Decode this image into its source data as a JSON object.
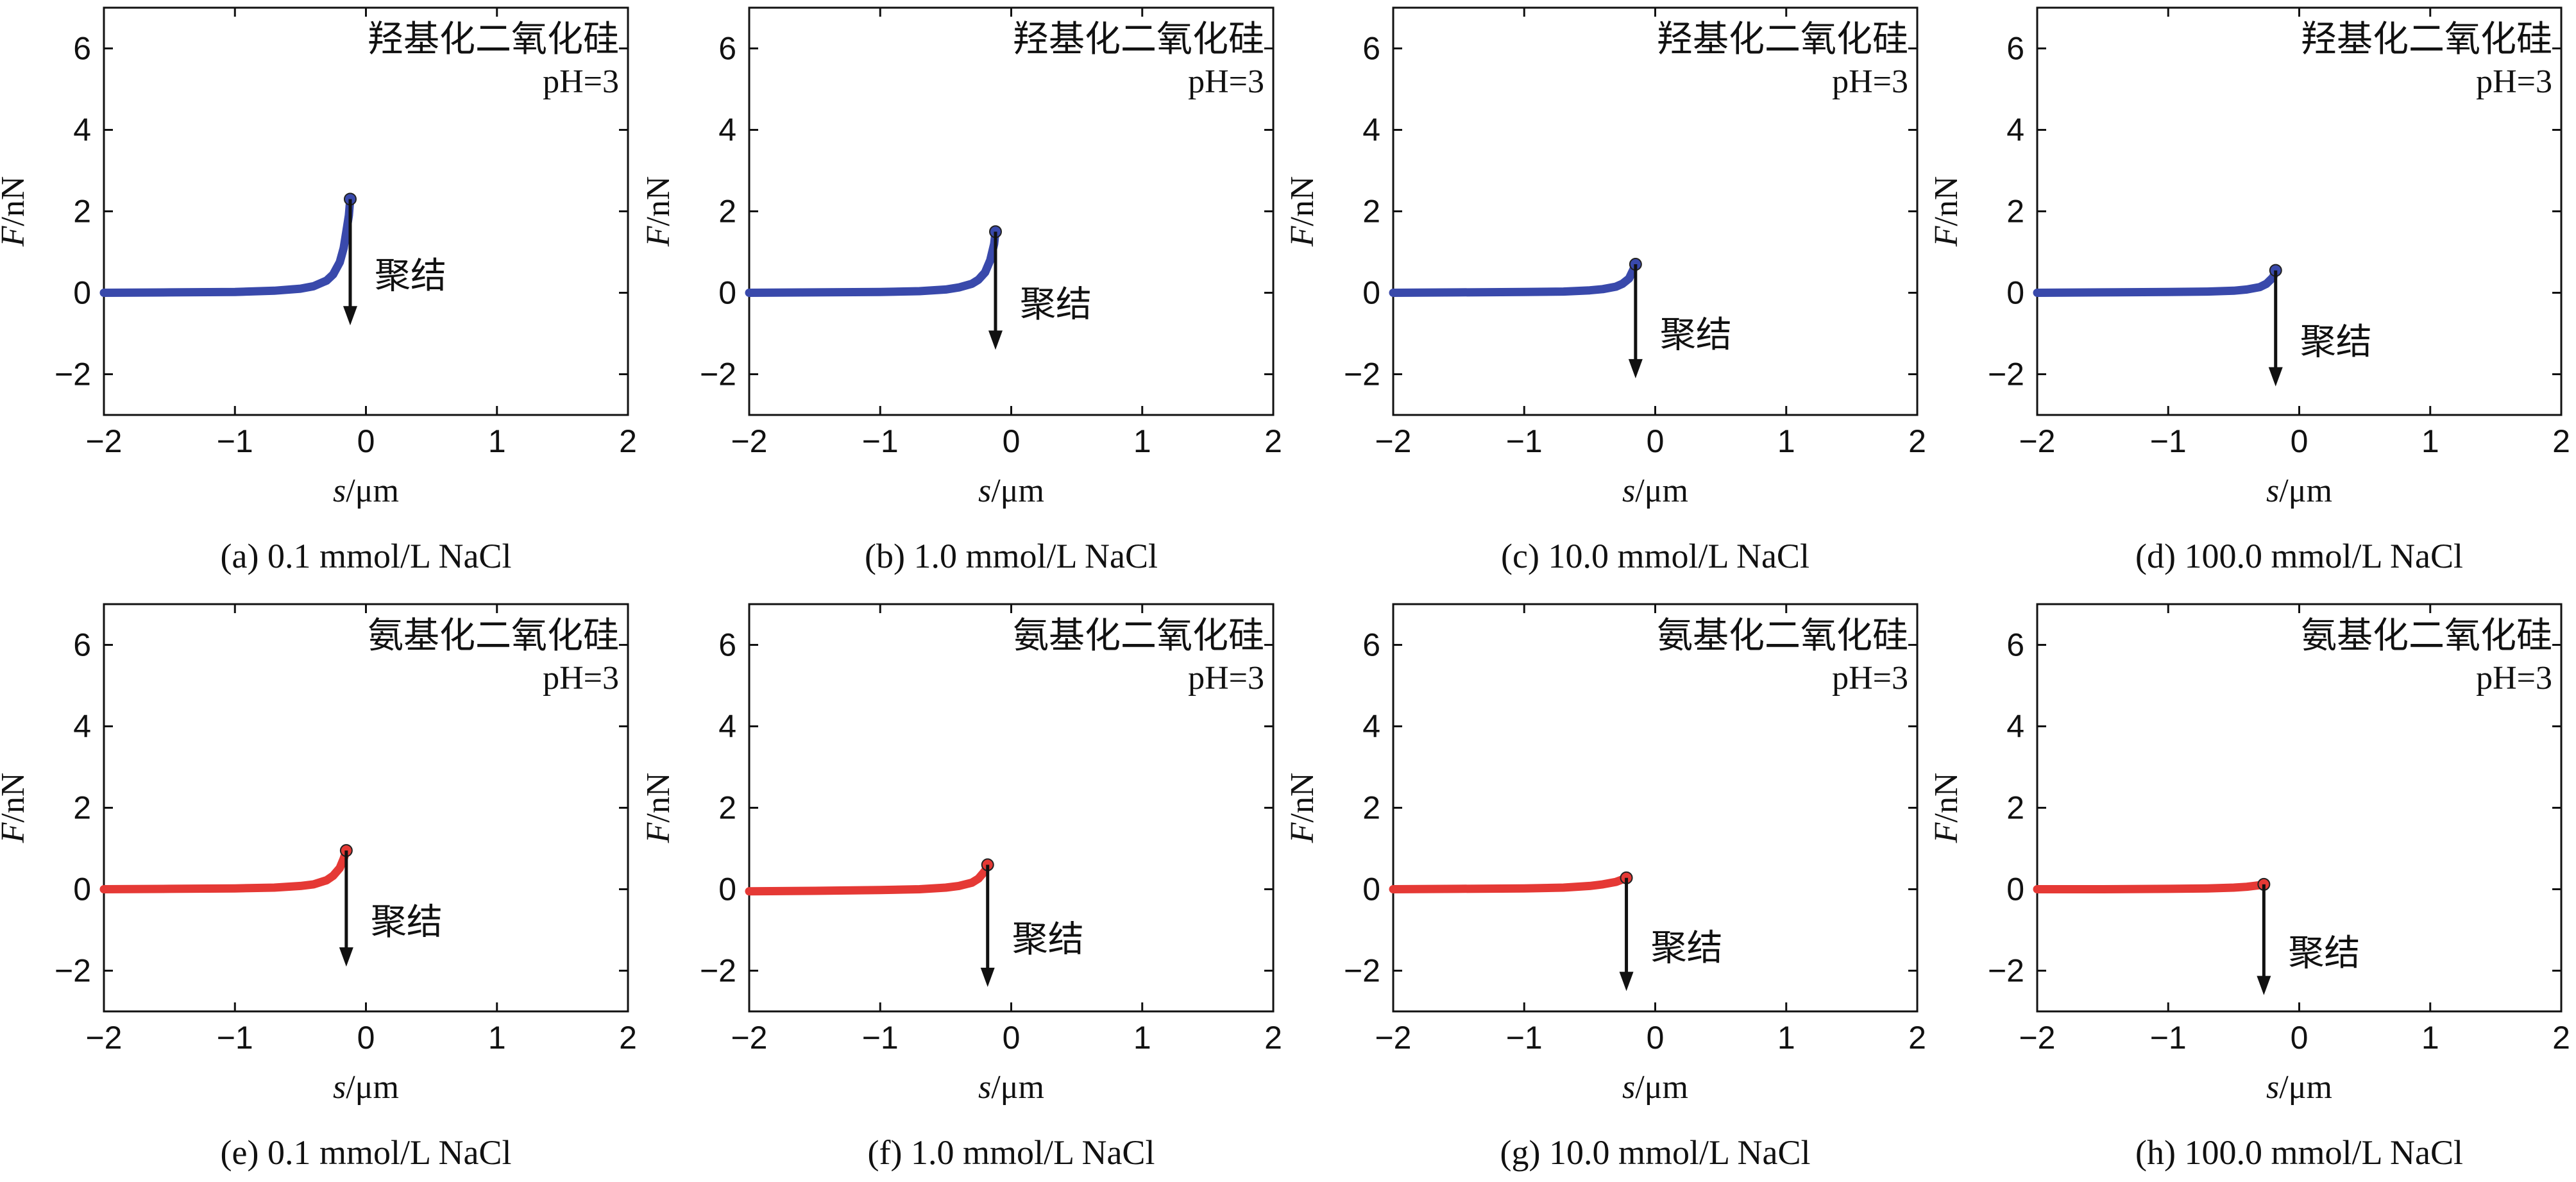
{
  "figure": {
    "description_units": {
      "x": "s/μm",
      "y": "F/nN"
    }
  },
  "chart_data": [
    {
      "id": "a",
      "type": "line",
      "caption": "(a) 0.1 mmol/L NaCl",
      "annotation": "羟基化二氧化硅",
      "ph": "pH=3",
      "arrow_label": "聚结",
      "xlabel_var": "s",
      "xlabel_unit": "/μm",
      "ylabel_var": "F",
      "ylabel_unit": "/nN",
      "xlim": [
        -2,
        2
      ],
      "ylim": [
        -3,
        7
      ],
      "xticks": [
        -2,
        -1,
        0,
        1,
        2
      ],
      "yticks": [
        -2,
        0,
        2,
        4,
        6
      ],
      "series": [
        {
          "name": "force curve",
          "color": "#3949ab",
          "x": [
            -2.0,
            -1.5,
            -1.0,
            -0.7,
            -0.5,
            -0.4,
            -0.3,
            -0.25,
            -0.2,
            -0.17,
            -0.15,
            -0.13,
            -0.12
          ],
          "y": [
            0.0,
            0.01,
            0.02,
            0.05,
            0.1,
            0.16,
            0.3,
            0.45,
            0.75,
            1.1,
            1.5,
            1.9,
            2.3
          ]
        }
      ],
      "jump": {
        "x": -0.12,
        "y_from": 2.3,
        "y_to": -0.8
      }
    },
    {
      "id": "b",
      "type": "line",
      "caption": "(b) 1.0 mmol/L NaCl",
      "annotation": "羟基化二氧化硅",
      "ph": "pH=3",
      "arrow_label": "聚结",
      "xlabel_var": "s",
      "xlabel_unit": "/μm",
      "ylabel_var": "F",
      "ylabel_unit": "/nN",
      "xlim": [
        -2,
        2
      ],
      "ylim": [
        -3,
        7
      ],
      "xticks": [
        -2,
        -1,
        0,
        1,
        2
      ],
      "yticks": [
        -2,
        0,
        2,
        4,
        6
      ],
      "series": [
        {
          "name": "force curve",
          "color": "#3949ab",
          "x": [
            -2.0,
            -1.5,
            -1.0,
            -0.7,
            -0.5,
            -0.4,
            -0.3,
            -0.25,
            -0.2,
            -0.16,
            -0.13,
            -0.12
          ],
          "y": [
            0.0,
            0.01,
            0.02,
            0.04,
            0.08,
            0.13,
            0.22,
            0.32,
            0.5,
            0.8,
            1.2,
            1.5
          ]
        }
      ],
      "jump": {
        "x": -0.12,
        "y_from": 1.5,
        "y_to": -1.4
      }
    },
    {
      "id": "c",
      "type": "line",
      "caption": "(c) 10.0 mmol/L NaCl",
      "annotation": "羟基化二氧化硅",
      "ph": "pH=3",
      "arrow_label": "聚结",
      "xlabel_var": "s",
      "xlabel_unit": "/μm",
      "ylabel_var": "F",
      "ylabel_unit": "/nN",
      "xlim": [
        -2,
        2
      ],
      "ylim": [
        -3,
        7
      ],
      "xticks": [
        -2,
        -1,
        0,
        1,
        2
      ],
      "yticks": [
        -2,
        0,
        2,
        4,
        6
      ],
      "series": [
        {
          "name": "force curve",
          "color": "#3949ab",
          "x": [
            -2.0,
            -1.5,
            -1.0,
            -0.7,
            -0.5,
            -0.4,
            -0.3,
            -0.25,
            -0.2,
            -0.17,
            -0.15
          ],
          "y": [
            0.0,
            0.01,
            0.02,
            0.03,
            0.06,
            0.09,
            0.15,
            0.22,
            0.35,
            0.55,
            0.7
          ]
        }
      ],
      "jump": {
        "x": -0.15,
        "y_from": 0.7,
        "y_to": -2.1
      }
    },
    {
      "id": "d",
      "type": "line",
      "caption": "(d) 100.0 mmol/L NaCl",
      "annotation": "羟基化二氧化硅",
      "ph": "pH=3",
      "arrow_label": "聚结",
      "xlabel_var": "s",
      "xlabel_unit": "/μm",
      "ylabel_var": "F",
      "ylabel_unit": "/nN",
      "xlim": [
        -2,
        2
      ],
      "ylim": [
        -3,
        7
      ],
      "xticks": [
        -2,
        -1,
        0,
        1,
        2
      ],
      "yticks": [
        -2,
        0,
        2,
        4,
        6
      ],
      "series": [
        {
          "name": "force curve",
          "color": "#3949ab",
          "x": [
            -2.0,
            -1.5,
            -1.0,
            -0.7,
            -0.5,
            -0.4,
            -0.3,
            -0.25,
            -0.2,
            -0.18
          ],
          "y": [
            0.0,
            0.01,
            0.02,
            0.03,
            0.05,
            0.08,
            0.14,
            0.22,
            0.38,
            0.55
          ]
        }
      ],
      "jump": {
        "x": -0.18,
        "y_from": 0.55,
        "y_to": -2.3
      }
    },
    {
      "id": "e",
      "type": "line",
      "caption": "(e) 0.1 mmol/L NaCl",
      "annotation": "氨基化二氧化硅",
      "ph": "pH=3",
      "arrow_label": "聚结",
      "xlabel_var": "s",
      "xlabel_unit": "/μm",
      "ylabel_var": "F",
      "ylabel_unit": "/nN",
      "xlim": [
        -2,
        2
      ],
      "ylim": [
        -3,
        7
      ],
      "xticks": [
        -2,
        -1,
        0,
        1,
        2
      ],
      "yticks": [
        -2,
        0,
        2,
        4,
        6
      ],
      "series": [
        {
          "name": "force curve",
          "color": "#e53935",
          "x": [
            -2.0,
            -1.5,
            -1.0,
            -0.7,
            -0.5,
            -0.4,
            -0.3,
            -0.25,
            -0.2,
            -0.17,
            -0.15
          ],
          "y": [
            0.0,
            0.01,
            0.02,
            0.04,
            0.08,
            0.12,
            0.22,
            0.33,
            0.52,
            0.75,
            0.95
          ]
        }
      ],
      "jump": {
        "x": -0.15,
        "y_from": 0.95,
        "y_to": -1.9
      }
    },
    {
      "id": "f",
      "type": "line",
      "caption": "(f) 1.0 mmol/L NaCl",
      "annotation": "氨基化二氧化硅",
      "ph": "pH=3",
      "arrow_label": "聚结",
      "xlabel_var": "s",
      "xlabel_unit": "/μm",
      "ylabel_var": "F",
      "ylabel_unit": "/nN",
      "xlim": [
        -2,
        2
      ],
      "ylim": [
        -3,
        7
      ],
      "xticks": [
        -2,
        -1,
        0,
        1,
        2
      ],
      "yticks": [
        -2,
        0,
        2,
        4,
        6
      ],
      "series": [
        {
          "name": "force curve",
          "color": "#e53935",
          "x": [
            -2.0,
            -1.5,
            -1.0,
            -0.7,
            -0.5,
            -0.4,
            -0.3,
            -0.25,
            -0.2,
            -0.18
          ],
          "y": [
            -0.05,
            -0.04,
            -0.02,
            0.0,
            0.04,
            0.08,
            0.16,
            0.26,
            0.45,
            0.6
          ]
        }
      ],
      "jump": {
        "x": -0.18,
        "y_from": 0.6,
        "y_to": -2.4
      }
    },
    {
      "id": "g",
      "type": "line",
      "caption": "(g) 10.0 mmol/L NaCl",
      "annotation": "氨基化二氧化硅",
      "ph": "pH=3",
      "arrow_label": "聚结",
      "xlabel_var": "s",
      "xlabel_unit": "/μm",
      "ylabel_var": "F",
      "ylabel_unit": "/nN",
      "xlim": [
        -2,
        2
      ],
      "ylim": [
        -3,
        7
      ],
      "xticks": [
        -2,
        -1,
        0,
        1,
        2
      ],
      "yticks": [
        -2,
        0,
        2,
        4,
        6
      ],
      "series": [
        {
          "name": "force curve",
          "color": "#e53935",
          "x": [
            -2.0,
            -1.5,
            -1.0,
            -0.7,
            -0.5,
            -0.4,
            -0.3,
            -0.25,
            -0.22
          ],
          "y": [
            0.0,
            0.01,
            0.02,
            0.04,
            0.08,
            0.12,
            0.18,
            0.24,
            0.28
          ]
        }
      ],
      "jump": {
        "x": -0.22,
        "y_from": 0.28,
        "y_to": -2.5
      }
    },
    {
      "id": "h",
      "type": "line",
      "caption": "(h) 100.0 mmol/L NaCl",
      "annotation": "氨基化二氧化硅",
      "ph": "pH=3",
      "arrow_label": "聚结",
      "xlabel_var": "s",
      "xlabel_unit": "/μm",
      "ylabel_var": "F",
      "ylabel_unit": "/nN",
      "xlim": [
        -2,
        2
      ],
      "ylim": [
        -3,
        7
      ],
      "xticks": [
        -2,
        -1,
        0,
        1,
        2
      ],
      "yticks": [
        -2,
        0,
        2,
        4,
        6
      ],
      "series": [
        {
          "name": "force curve",
          "color": "#e53935",
          "x": [
            -2.0,
            -1.5,
            -1.0,
            -0.7,
            -0.5,
            -0.4,
            -0.3,
            -0.27
          ],
          "y": [
            0.0,
            0.0,
            0.01,
            0.02,
            0.04,
            0.06,
            0.1,
            0.12
          ]
        }
      ],
      "jump": {
        "x": -0.27,
        "y_from": 0.12,
        "y_to": -2.6
      }
    }
  ]
}
